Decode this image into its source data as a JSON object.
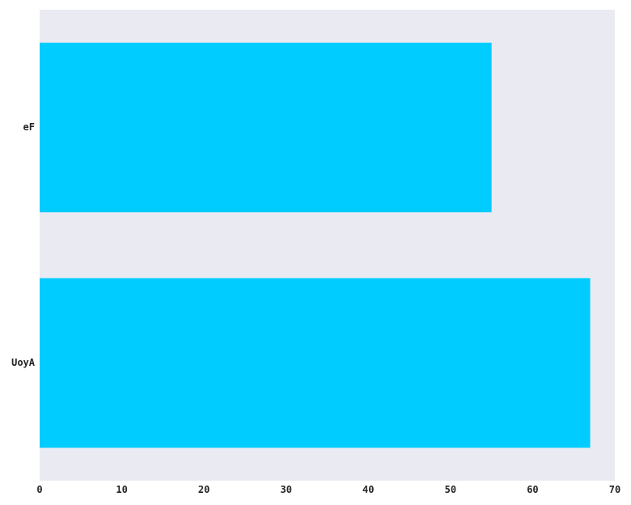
{
  "chart_data": {
    "type": "bar",
    "orientation": "horizontal",
    "categories": [
      "eF",
      "UoyA"
    ],
    "values": [
      55,
      67
    ],
    "xlim": [
      0,
      70
    ],
    "xticks": [
      0,
      10,
      20,
      30,
      40,
      50,
      60,
      70
    ],
    "title": "",
    "xlabel": "",
    "ylabel": "",
    "grid": false,
    "bar_color": "#00CCFF",
    "background_color": "#EAEAF2"
  }
}
